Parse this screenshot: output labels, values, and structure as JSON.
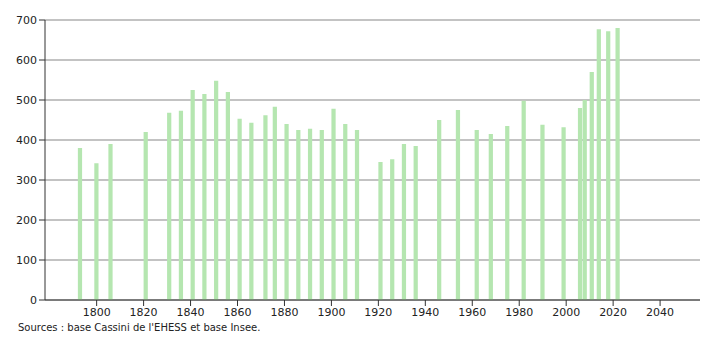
{
  "chart_data": {
    "type": "bar",
    "source": "Sources : base Cassini de l'EHESS et base Insee.",
    "x": [
      1793,
      1800,
      1806,
      1821,
      1831,
      1836,
      1841,
      1846,
      1851,
      1856,
      1861,
      1866,
      1872,
      1876,
      1881,
      1886,
      1891,
      1896,
      1901,
      1906,
      1911,
      1921,
      1926,
      1931,
      1936,
      1946,
      1954,
      1962,
      1968,
      1975,
      1982,
      1990,
      1999,
      2006,
      2008,
      2011,
      2014,
      2018,
      2022
    ],
    "values": [
      380,
      342,
      390,
      420,
      468,
      473,
      525,
      515,
      548,
      520,
      453,
      443,
      462,
      483,
      440,
      425,
      428,
      425,
      478,
      440,
      425,
      345,
      352,
      390,
      385,
      450,
      475,
      425,
      415,
      435,
      498,
      438,
      432,
      480,
      500,
      570,
      677,
      672,
      680
    ],
    "color": "#b5e6b0",
    "xlim": [
      1778,
      2057
    ],
    "xticks": [
      1800,
      1820,
      1840,
      1860,
      1880,
      1900,
      1920,
      1940,
      1960,
      1980,
      2000,
      2020,
      2040
    ],
    "ylim": [
      0,
      700
    ],
    "yticks": [
      0,
      100,
      200,
      300,
      400,
      500,
      600,
      700
    ],
    "grid": true
  }
}
